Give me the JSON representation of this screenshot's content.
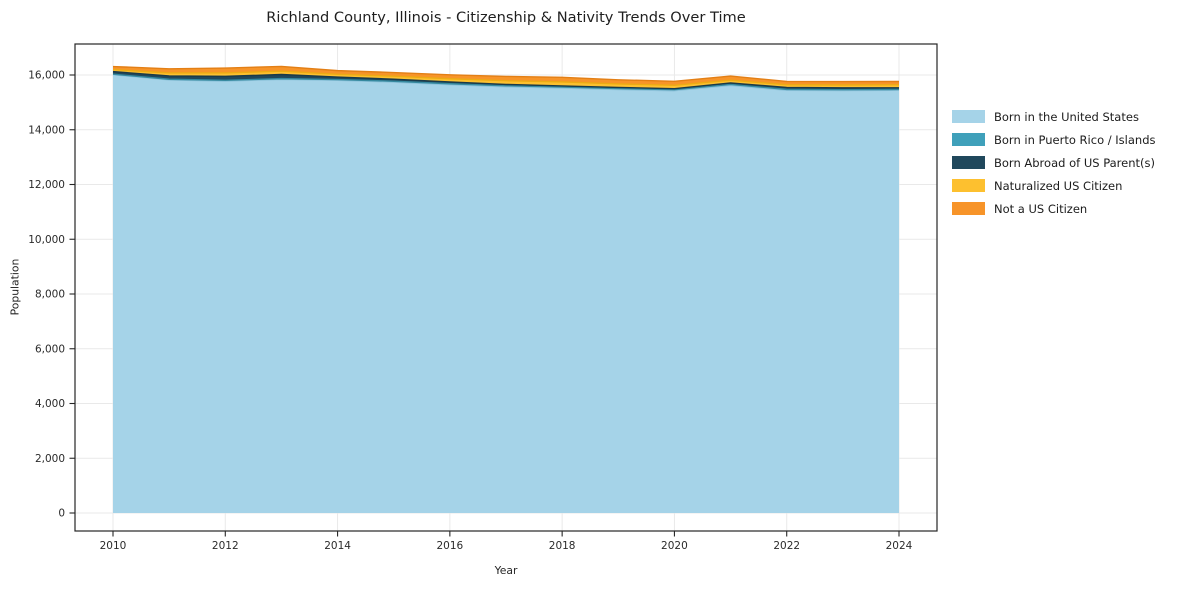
{
  "chart_data": {
    "type": "area",
    "stacked": true,
    "title": "Richland County, Illinois - Citizenship & Nativity Trends Over Time",
    "xlabel": "Year",
    "ylabel": "Population",
    "x": [
      2010,
      2011,
      2012,
      2013,
      2014,
      2015,
      2016,
      2017,
      2018,
      2019,
      2020,
      2021,
      2022,
      2023,
      2024
    ],
    "series": [
      {
        "name": "Born in the United States",
        "color": "#a5d3e8",
        "edge_color": "#8cc2da",
        "values": [
          16010,
          15820,
          15775,
          15840,
          15805,
          15740,
          15645,
          15570,
          15525,
          15470,
          15425,
          15620,
          15440,
          15430,
          15445
        ]
      },
      {
        "name": "Born in Puerto Rico / Islands",
        "color": "#3fa0ba",
        "edge_color": "#35899f",
        "values": [
          20,
          25,
          30,
          28,
          30,
          32,
          35,
          36,
          36,
          36,
          38,
          36,
          35,
          35,
          26
        ]
      },
      {
        "name": "Born Abroad of US Parent(s)",
        "color": "#20485c",
        "edge_color": "#1a3a4a",
        "values": [
          95,
          120,
          145,
          150,
          90,
          75,
          65,
          50,
          40,
          38,
          38,
          55,
          70,
          65,
          62
        ]
      },
      {
        "name": "Naturalized US Citizen",
        "color": "#fdc02f",
        "edge_color": "#edab14",
        "values": [
          75,
          110,
          125,
          120,
          100,
          108,
          118,
          135,
          145,
          130,
          122,
          100,
          99,
          105,
          110
        ]
      },
      {
        "name": "Not a US Citizen",
        "color": "#f79429",
        "edge_color": "#e37f15",
        "values": [
          110,
          150,
          180,
          175,
          135,
          135,
          145,
          158,
          168,
          152,
          145,
          150,
          120,
          125,
          120
        ]
      }
    ],
    "xtick_labels": [
      "2010",
      "2012",
      "2014",
      "2016",
      "2018",
      "2020",
      "2022",
      "2024"
    ],
    "xtick_values": [
      2010,
      2012,
      2014,
      2016,
      2018,
      2020,
      2022,
      2024
    ],
    "ytick_labels": [
      "0",
      "2,000",
      "4,000",
      "6,000",
      "8,000",
      "10,000",
      "12,000",
      "14,000",
      "16,000"
    ],
    "ytick_values": [
      0,
      2000,
      4000,
      6000,
      8000,
      10000,
      12000,
      14000,
      16000
    ],
    "ylim": [
      -660,
      17130
    ],
    "grid": true,
    "legend_position": "right-outside",
    "colors": {
      "grid": "#e9e9e9",
      "spine": "#262626",
      "tick_label": "#2b2b2b",
      "background": "#ffffff"
    }
  }
}
